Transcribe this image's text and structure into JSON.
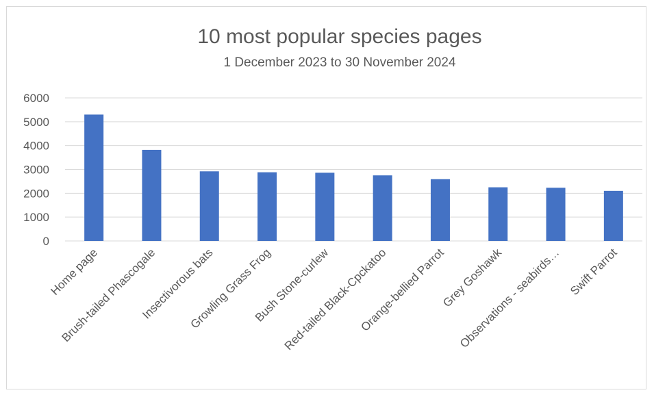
{
  "chart_data": {
    "type": "bar",
    "title": "10 most popular species pages",
    "subtitle": "1 December 2023 to 30 November 2024",
    "xlabel": "",
    "ylabel": "",
    "ylim": [
      0,
      6000
    ],
    "yticks": [
      0,
      1000,
      2000,
      3000,
      4000,
      5000,
      6000
    ],
    "grid": true,
    "legend": "none",
    "bar_color": "#4472C4",
    "categories": [
      "Home page",
      "Brush-tailed Phascogale",
      "Insectivorous bats",
      "Growling Grass Frog",
      "Bush Stone-curlew",
      "Red-tailed Black-Cpckatoo",
      "Orange-bellied Parrot",
      "Grey Goshawk",
      "Observations - seabirds…",
      "Swift Parrot"
    ],
    "values": [
      5300,
      3820,
      2920,
      2880,
      2860,
      2750,
      2590,
      2250,
      2230,
      2100
    ]
  }
}
